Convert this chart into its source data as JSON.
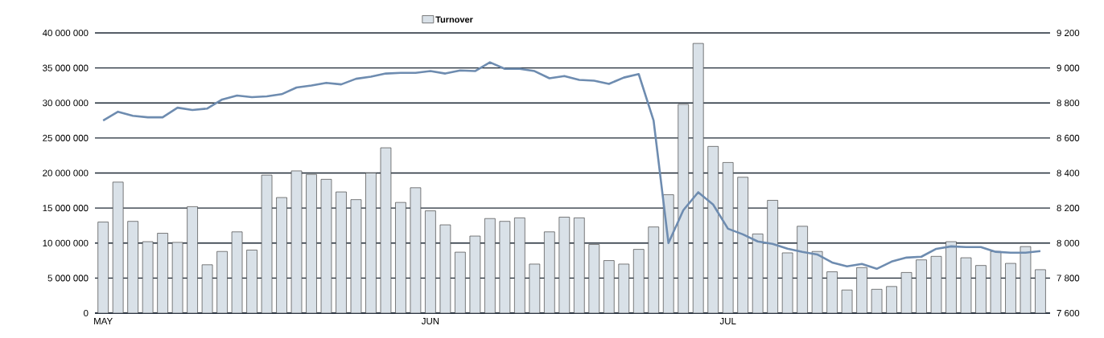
{
  "chart_data": {
    "type": "bar",
    "categories": [
      "MAY",
      null,
      null,
      null,
      null,
      null,
      null,
      null,
      null,
      null,
      null,
      null,
      null,
      null,
      null,
      null,
      null,
      null,
      null,
      null,
      null,
      null,
      "JUN",
      null,
      null,
      null,
      null,
      null,
      null,
      null,
      null,
      null,
      null,
      null,
      null,
      null,
      null,
      null,
      null,
      null,
      null,
      null,
      "JUL",
      null,
      null,
      null,
      null,
      null,
      null,
      null,
      null,
      null,
      null,
      null,
      null,
      null,
      null,
      null,
      null,
      null,
      null,
      null,
      null,
      null
    ],
    "series": [
      {
        "name": "Turnover",
        "color": "#d9e1e8",
        "values": [
          13000000,
          18700000,
          13100000,
          10200000,
          11400000,
          10100000,
          15200000,
          6900000,
          8800000,
          11600000,
          9000000,
          19700000,
          16500000,
          20300000,
          19800000,
          19100000,
          17300000,
          16200000,
          20000000,
          23600000,
          15800000,
          17900000,
          14600000,
          12600000,
          8700000,
          11000000,
          13500000,
          13100000,
          13600000,
          7000000,
          11600000,
          13700000,
          13600000,
          9800000,
          7500000,
          7000000,
          9100000,
          12300000,
          16900000,
          29800000,
          38500000,
          23800000,
          21500000,
          19400000,
          11300000,
          16100000,
          8600000,
          12400000,
          8800000,
          5900000,
          3300000,
          6500000,
          3400000,
          3800000,
          5800000,
          7600000,
          8100000,
          10200000,
          7900000,
          6800000,
          8800000,
          7100000,
          9500000,
          6200000
        ]
      },
      {
        "type": "line",
        "axis": "y2",
        "color": "#6e8cb0",
        "values": [
          8700,
          8750,
          8727,
          8718,
          8718,
          8773,
          8760,
          8768,
          8820,
          8842,
          8833,
          8838,
          8850,
          8888,
          8900,
          8915,
          8906,
          8938,
          8950,
          8968,
          8972,
          8972,
          8982,
          8968,
          8986,
          8982,
          9032,
          8995,
          8995,
          8982,
          8941,
          8954,
          8932,
          8927,
          8909,
          8945,
          8965,
          8700,
          8000,
          8188,
          8290,
          8220,
          8082,
          8050,
          8009,
          7995,
          7968,
          7950,
          7935,
          7889,
          7867,
          7881,
          7853,
          7894,
          7917,
          7922,
          7967,
          7981,
          7977,
          7977,
          7950,
          7945,
          7945,
          7954
        ]
      }
    ],
    "ylim": [
      0,
      40000000
    ],
    "yticks": [
      {
        "value": 0,
        "label": "0"
      },
      {
        "value": 5000000,
        "label": "5 000 000"
      },
      {
        "value": 10000000,
        "label": "10 000 000"
      },
      {
        "value": 15000000,
        "label": "15 000 000"
      },
      {
        "value": 20000000,
        "label": "20 000 000"
      },
      {
        "value": 25000000,
        "label": "25 000 000"
      },
      {
        "value": 30000000,
        "label": "30 000 000"
      },
      {
        "value": 35000000,
        "label": "35 000 000"
      },
      {
        "value": 40000000,
        "label": "40 000 000"
      }
    ],
    "y2lim": [
      7600,
      9200
    ],
    "y2ticks": [
      {
        "value": 7600,
        "label": "7 600"
      },
      {
        "value": 7800,
        "label": "7 800"
      },
      {
        "value": 8000,
        "label": "8 000"
      },
      {
        "value": 8200,
        "label": "8 200"
      },
      {
        "value": 8400,
        "label": "8 400"
      },
      {
        "value": 8600,
        "label": "8 600"
      },
      {
        "value": 8800,
        "label": "8 800"
      },
      {
        "value": 9000,
        "label": "9 000"
      },
      {
        "value": 9200,
        "label": "9 200"
      }
    ],
    "grid": "y",
    "legend": "top"
  }
}
